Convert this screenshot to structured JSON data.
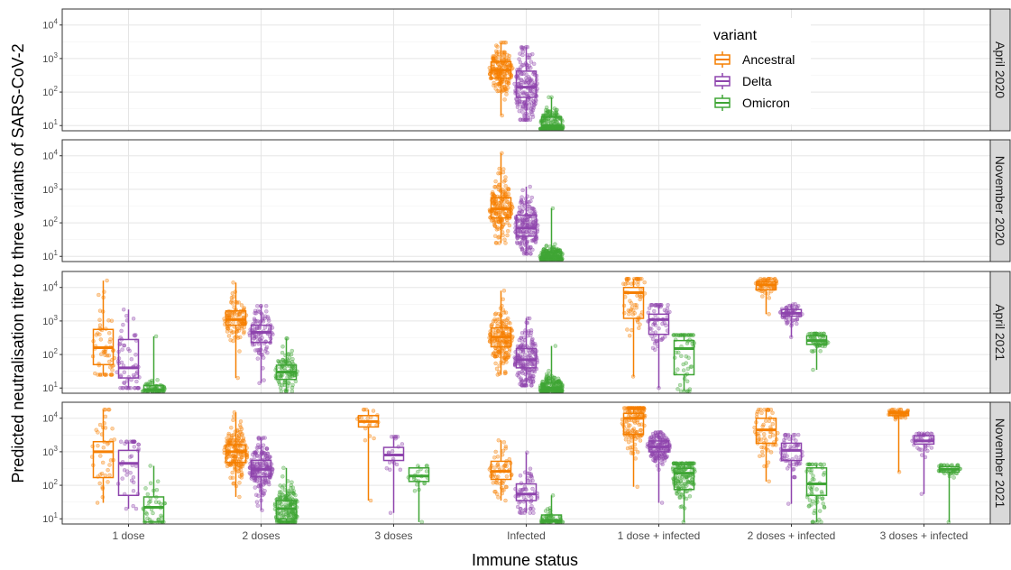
{
  "chart_data": {
    "type": "box",
    "xlabel": "Immune status",
    "ylabel": "Predicted neutralisation titer to three variants of SARS-CoV-2",
    "categories": [
      "1 dose",
      "2 doses",
      "3 doses",
      "Infected",
      "1 dose + infected",
      "2 doses + infected",
      "3 doses + infected"
    ],
    "y_scale": "log10",
    "y_ticks": [
      10,
      100,
      1000,
      10000
    ],
    "y_tick_labels": [
      {
        "base": "10",
        "exp": "1"
      },
      {
        "base": "10",
        "exp": "2"
      },
      {
        "base": "10",
        "exp": "3"
      },
      {
        "base": "10",
        "exp": "4"
      }
    ],
    "ylim": [
      7,
      30000
    ],
    "grid": true,
    "legend": {
      "title": "variant",
      "position": "inside top-right of first panel",
      "entries": [
        {
          "name": "Ancestral",
          "color": "#F57F00"
        },
        {
          "name": "Delta",
          "color": "#8E44AD"
        },
        {
          "name": "Omicron",
          "color": "#3FA535"
        }
      ]
    },
    "facets": [
      {
        "label": "April 2020",
        "groups": [
          {
            "category": "Infected",
            "variant": "Ancestral",
            "min": 20,
            "q1": 260,
            "median": 450,
            "q3": 800,
            "max": 3000,
            "n": 180
          },
          {
            "category": "Infected",
            "variant": "Delta",
            "min": 15,
            "q1": 70,
            "median": 140,
            "q3": 420,
            "max": 2200,
            "n": 180
          },
          {
            "category": "Infected",
            "variant": "Omicron",
            "min": 8,
            "q1": 8,
            "median": 10,
            "q3": 18,
            "max": 70,
            "n": 180
          }
        ]
      },
      {
        "label": "November 2020",
        "groups": [
          {
            "category": "Infected",
            "variant": "Ancestral",
            "min": 25,
            "q1": 140,
            "median": 260,
            "q3": 560,
            "max": 12000,
            "n": 180
          },
          {
            "category": "Infected",
            "variant": "Delta",
            "min": 12,
            "q1": 40,
            "median": 70,
            "q3": 170,
            "max": 1200,
            "n": 180
          },
          {
            "category": "Infected",
            "variant": "Omicron",
            "min": 8,
            "q1": 8,
            "median": 10,
            "q3": 13,
            "max": 270,
            "n": 180
          }
        ]
      },
      {
        "label": "April 2021",
        "groups": [
          {
            "category": "1 dose",
            "variant": "Ancestral",
            "min": 25,
            "q1": 50,
            "median": 160,
            "q3": 560,
            "max": 16000,
            "n": 60
          },
          {
            "category": "1 dose",
            "variant": "Delta",
            "min": 10,
            "q1": 20,
            "median": 40,
            "q3": 280,
            "max": 2200,
            "n": 60
          },
          {
            "category": "1 dose",
            "variant": "Omicron",
            "min": 8,
            "q1": 8,
            "median": 9,
            "q3": 12,
            "max": 350,
            "n": 60
          },
          {
            "category": "2 doses",
            "variant": "Ancestral",
            "min": 20,
            "q1": 750,
            "median": 1100,
            "q3": 2000,
            "max": 14000,
            "n": 100
          },
          {
            "category": "2 doses",
            "variant": "Delta",
            "min": 14,
            "q1": 230,
            "median": 460,
            "q3": 750,
            "max": 2800,
            "n": 100
          },
          {
            "category": "2 doses",
            "variant": "Omicron",
            "min": 8,
            "q1": 18,
            "median": 30,
            "q3": 48,
            "max": 300,
            "n": 100
          },
          {
            "category": "Infected",
            "variant": "Ancestral",
            "min": 25,
            "q1": 170,
            "median": 330,
            "q3": 620,
            "max": 8000,
            "n": 180
          },
          {
            "category": "Infected",
            "variant": "Delta",
            "min": 12,
            "q1": 40,
            "median": 70,
            "q3": 150,
            "max": 1200,
            "n": 180
          },
          {
            "category": "Infected",
            "variant": "Omicron",
            "min": 8,
            "q1": 8,
            "median": 10,
            "q3": 14,
            "max": 180,
            "n": 180
          },
          {
            "category": "1 dose + infected",
            "variant": "Ancestral",
            "min": 22,
            "q1": 1200,
            "median": 7000,
            "q3": 10000,
            "max": 18000,
            "n": 60
          },
          {
            "category": "1 dose + infected",
            "variant": "Delta",
            "min": 10,
            "q1": 400,
            "median": 1100,
            "q3": 1600,
            "max": 3000,
            "n": 60
          },
          {
            "category": "1 dose + infected",
            "variant": "Omicron",
            "min": 8,
            "q1": 25,
            "median": 150,
            "q3": 260,
            "max": 380,
            "n": 60
          },
          {
            "category": "2 doses + infected",
            "variant": "Ancestral",
            "min": 1600,
            "q1": 8500,
            "median": 12000,
            "q3": 14500,
            "max": 18000,
            "n": 60
          },
          {
            "category": "2 doses + infected",
            "variant": "Delta",
            "min": 330,
            "q1": 1400,
            "median": 1700,
            "q3": 2200,
            "max": 3200,
            "n": 60
          },
          {
            "category": "2 doses + infected",
            "variant": "Omicron",
            "min": 35,
            "q1": 200,
            "median": 260,
            "q3": 360,
            "max": 420,
            "n": 60
          }
        ]
      },
      {
        "label": "November 2021",
        "groups": [
          {
            "category": "1 dose",
            "variant": "Ancestral",
            "min": 30,
            "q1": 170,
            "median": 1000,
            "q3": 2000,
            "max": 18000,
            "n": 40
          },
          {
            "category": "1 dose",
            "variant": "Delta",
            "min": 20,
            "q1": 50,
            "median": 450,
            "q3": 1100,
            "max": 2000,
            "n": 40
          },
          {
            "category": "1 dose",
            "variant": "Omicron",
            "min": 8,
            "q1": 8,
            "median": 22,
            "q3": 45,
            "max": 380,
            "n": 40
          },
          {
            "category": "2 doses",
            "variant": "Ancestral",
            "min": 45,
            "q1": 480,
            "median": 1000,
            "q3": 1600,
            "max": 15000,
            "n": 180
          },
          {
            "category": "2 doses",
            "variant": "Delta",
            "min": 18,
            "q1": 180,
            "median": 300,
            "q3": 560,
            "max": 2600,
            "n": 180
          },
          {
            "category": "2 doses",
            "variant": "Omicron",
            "min": 8,
            "q1": 10,
            "median": 20,
            "q3": 35,
            "max": 330,
            "n": 180
          },
          {
            "category": "3 doses",
            "variant": "Ancestral",
            "min": 35,
            "q1": 5500,
            "median": 8000,
            "q3": 12000,
            "max": 18000,
            "n": 20
          },
          {
            "category": "3 doses",
            "variant": "Delta",
            "min": 15,
            "q1": 550,
            "median": 800,
            "q3": 1350,
            "max": 2800,
            "n": 20
          },
          {
            "category": "3 doses",
            "variant": "Omicron",
            "min": 8,
            "q1": 130,
            "median": 190,
            "q3": 330,
            "max": 380,
            "n": 20
          },
          {
            "category": "Infected",
            "variant": "Ancestral",
            "min": 35,
            "q1": 150,
            "median": 260,
            "q3": 520,
            "max": 2200,
            "n": 60
          },
          {
            "category": "Infected",
            "variant": "Delta",
            "min": 15,
            "q1": 35,
            "median": 55,
            "q3": 110,
            "max": 950,
            "n": 60
          },
          {
            "category": "Infected",
            "variant": "Omicron",
            "min": 8,
            "q1": 8,
            "median": 9,
            "q3": 13,
            "max": 50,
            "n": 60
          },
          {
            "category": "1 dose + infected",
            "variant": "Ancestral",
            "min": 90,
            "q1": 3300,
            "median": 10000,
            "q3": 14000,
            "max": 20000,
            "n": 150
          },
          {
            "category": "1 dose + infected",
            "variant": "Delta",
            "min": 30,
            "q1": 1000,
            "median": 1400,
            "q3": 2100,
            "max": 3800,
            "n": 150
          },
          {
            "category": "1 dose + infected",
            "variant": "Omicron",
            "min": 8,
            "q1": 75,
            "median": 230,
            "q3": 320,
            "max": 450,
            "n": 150
          },
          {
            "category": "2 doses + infected",
            "variant": "Ancestral",
            "min": 130,
            "q1": 1800,
            "median": 4500,
            "q3": 10000,
            "max": 18000,
            "n": 60
          },
          {
            "category": "2 doses + infected",
            "variant": "Delta",
            "min": 28,
            "q1": 550,
            "median": 1100,
            "q3": 1800,
            "max": 3200,
            "n": 60
          },
          {
            "category": "2 doses + infected",
            "variant": "Omicron",
            "min": 8,
            "q1": 50,
            "median": 110,
            "q3": 330,
            "max": 420,
            "n": 60
          },
          {
            "category": "3 doses + infected",
            "variant": "Ancestral",
            "min": 250,
            "q1": 12000,
            "median": 14000,
            "q3": 16000,
            "max": 18000,
            "n": 40
          },
          {
            "category": "3 doses + infected",
            "variant": "Delta",
            "min": 55,
            "q1": 1700,
            "median": 2100,
            "q3": 3000,
            "max": 3500,
            "n": 40
          },
          {
            "category": "3 doses + infected",
            "variant": "Omicron",
            "min": 8,
            "q1": 250,
            "median": 300,
            "q3": 360,
            "max": 400,
            "n": 40
          }
        ]
      }
    ]
  }
}
